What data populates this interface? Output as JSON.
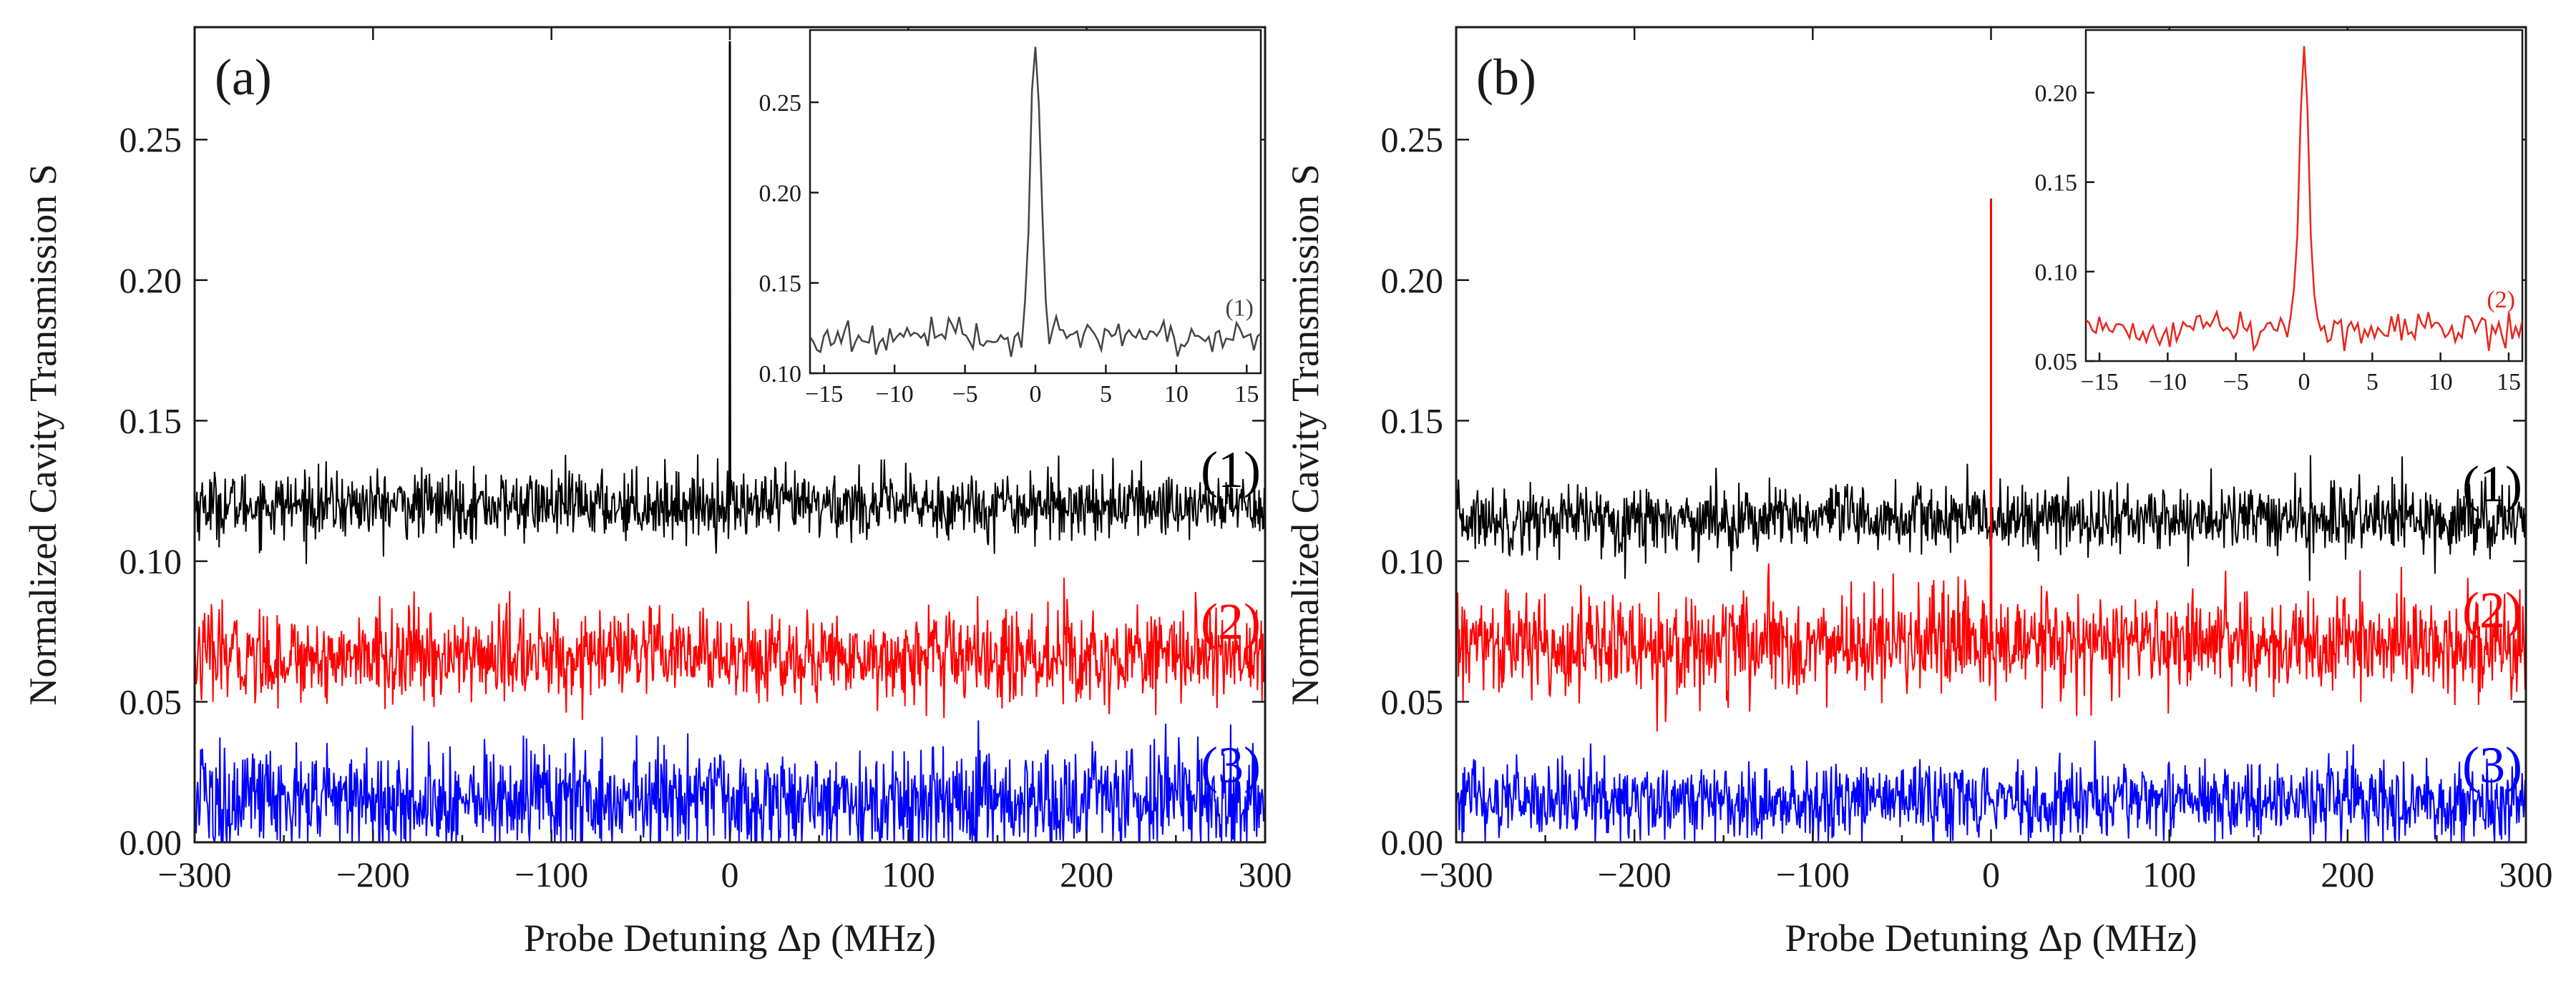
{
  "chart_data": [
    {
      "panel": "(a)",
      "type": "line",
      "xlabel": "Probe Detuning Δp (MHz)",
      "ylabel": "Normalized Cavity Transmission S",
      "xlim": [
        -300,
        300
      ],
      "ylim": [
        0,
        0.29
      ],
      "xticks": [
        -300,
        -200,
        -100,
        0,
        100,
        200,
        300
      ],
      "xtick_labels": [
        "−300",
        "−200",
        "−100",
        "0",
        "100",
        "200",
        "300"
      ],
      "yticks": [
        0,
        0.05,
        0.1,
        0.15,
        0.2,
        0.25
      ],
      "ytick_labels": [
        "0.00",
        "0.05",
        "0.10",
        "0.15",
        "0.20",
        "0.25"
      ],
      "series": [
        {
          "name": "(1)",
          "color": "#000000",
          "baseline": 0.12,
          "noise": 0.006,
          "peak": {
            "x": 0,
            "y": 0.285
          }
        },
        {
          "name": "(2)",
          "color": "#ff0000",
          "baseline": 0.066,
          "noise": 0.008,
          "peak": null
        },
        {
          "name": "(3)",
          "color": "#0000ff",
          "baseline": 0.015,
          "noise": 0.01,
          "peak": null
        }
      ],
      "inset": {
        "xlim": [
          -16,
          16
        ],
        "ylim": [
          0.1,
          0.29
        ],
        "xticks": [
          -15,
          -10,
          -5,
          0,
          5,
          10,
          15
        ],
        "xtick_labels": [
          "−15",
          "−10",
          "−5",
          "0",
          "5",
          "10",
          "15"
        ],
        "yticks": [
          0.1,
          0.15,
          0.2,
          0.25
        ],
        "ytick_labels": [
          "0.10",
          "0.15",
          "0.20",
          "0.25"
        ],
        "series_name": "(1)",
        "color": "#444444",
        "baseline": 0.12,
        "noise": 0.005,
        "peak": {
          "x": 0,
          "y": 0.285
        }
      }
    },
    {
      "panel": "(b)",
      "type": "line",
      "xlabel": "Probe Detuning Δp (MHz)",
      "ylabel": "Normalized Cavity Transmission S",
      "xlim": [
        -300,
        300
      ],
      "ylim": [
        0,
        0.29
      ],
      "xticks": [
        -300,
        -200,
        -100,
        0,
        100,
        200,
        300
      ],
      "xtick_labels": [
        "−300",
        "−200",
        "−100",
        "0",
        "100",
        "200",
        "300"
      ],
      "yticks": [
        0,
        0.05,
        0.1,
        0.15,
        0.2,
        0.25
      ],
      "ytick_labels": [
        "0.00",
        "0.05",
        "0.10",
        "0.15",
        "0.20",
        "0.25"
      ],
      "series": [
        {
          "name": "(1)",
          "color": "#000000",
          "baseline": 0.115,
          "noise": 0.006,
          "peak": null
        },
        {
          "name": "(2)",
          "color": "#ff0000",
          "baseline": 0.07,
          "noise": 0.009,
          "peak": {
            "x": 0,
            "y": 0.229
          }
        },
        {
          "name": "(3)",
          "color": "#0000ff",
          "baseline": 0.015,
          "noise": 0.007,
          "peak": null
        }
      ],
      "inset": {
        "xlim": [
          -16,
          16
        ],
        "ylim": [
          0.05,
          0.235
        ],
        "xticks": [
          -15,
          -10,
          -5,
          0,
          5,
          10,
          15
        ],
        "xtick_labels": [
          "−15",
          "−10",
          "−5",
          "0",
          "5",
          "10",
          "15"
        ],
        "yticks": [
          0.05,
          0.1,
          0.15,
          0.2
        ],
        "ytick_labels": [
          "0.05",
          "0.10",
          "0.15",
          "0.20"
        ],
        "series_name": "(2)",
        "color": "#e8261c",
        "baseline": 0.068,
        "noise": 0.005,
        "peak": {
          "x": 0,
          "y": 0.229
        }
      }
    }
  ]
}
